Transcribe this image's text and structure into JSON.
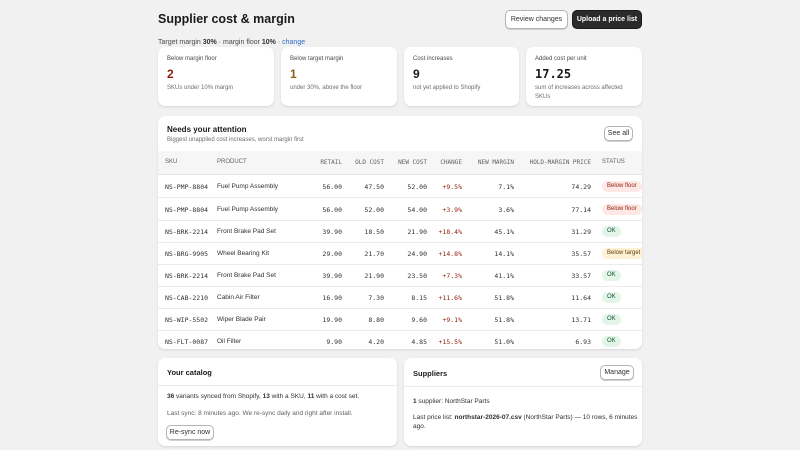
{
  "header": {
    "title": "Supplier cost & margin",
    "subtitle_prefix": "Target margin ",
    "target_margin": "30%",
    "subtitle_mid": " · margin floor ",
    "margin_floor": "10%",
    "subtitle_sep": " · ",
    "change_link": "change",
    "review_button": "Review changes",
    "upload_button": "Upload a price list"
  },
  "stats": [
    {
      "label": "Below margin floor",
      "value": "2",
      "note": "SKUs under 10% margin",
      "color": "#8e1f0b"
    },
    {
      "label": "Below target margin",
      "value": "1",
      "note": "under 30%, above the floor",
      "color": "#8a6116"
    },
    {
      "label": "Cost increases",
      "value": "9",
      "note": "not yet applied to Shopify",
      "color": "#1a1a1a"
    },
    {
      "label": "Added cost per unit",
      "value": "17.25",
      "note": "sum of increases across affected SKUs",
      "color": "#1a1a1a"
    }
  ],
  "attention": {
    "title": "Needs your attention",
    "subtitle": "Biggest unapplied cost increases, worst margin first",
    "see_all": "See all",
    "columns": {
      "sku": "SKU",
      "product": "PRODUCT",
      "retail": "RETAIL",
      "old_cost": "OLD COST",
      "new_cost": "NEW COST",
      "change": "CHANGE",
      "new_margin": "NEW MARGIN",
      "hold_price": "HOLD-MARGIN PRICE",
      "status": "STATUS"
    },
    "rows": [
      {
        "sku": "NS-PMP-8804",
        "product": "Fuel Pump Assembly",
        "retail": "56.00",
        "old_cost": "47.50",
        "new_cost": "52.00",
        "change": "+9.5%",
        "new_margin": "7.1%",
        "hold_price": "74.29",
        "status": "Below floor",
        "status_type": "floor"
      },
      {
        "sku": "NS-PMP-8804",
        "product": "Fuel Pump Assembly",
        "retail": "56.00",
        "old_cost": "52.00",
        "new_cost": "54.00",
        "change": "+3.9%",
        "new_margin": "3.6%",
        "hold_price": "77.14",
        "status": "Below floor",
        "status_type": "floor"
      },
      {
        "sku": "NS-BRK-2214",
        "product": "Front Brake Pad Set",
        "retail": "39.90",
        "old_cost": "18.50",
        "new_cost": "21.90",
        "change": "+18.4%",
        "new_margin": "45.1%",
        "hold_price": "31.29",
        "status": "OK",
        "status_type": "ok"
      },
      {
        "sku": "NS-BRG-9905",
        "product": "Wheel Bearing Kit",
        "retail": "29.00",
        "old_cost": "21.70",
        "new_cost": "24.90",
        "change": "+14.8%",
        "new_margin": "14.1%",
        "hold_price": "35.57",
        "status": "Below target",
        "status_type": "target"
      },
      {
        "sku": "NS-BRK-2214",
        "product": "Front Brake Pad Set",
        "retail": "39.90",
        "old_cost": "21.90",
        "new_cost": "23.50",
        "change": "+7.3%",
        "new_margin": "41.1%",
        "hold_price": "33.57",
        "status": "OK",
        "status_type": "ok"
      },
      {
        "sku": "NS-CAB-2210",
        "product": "Cabin Air Filter",
        "retail": "16.90",
        "old_cost": "7.30",
        "new_cost": "8.15",
        "change": "+11.6%",
        "new_margin": "51.8%",
        "hold_price": "11.64",
        "status": "OK",
        "status_type": "ok"
      },
      {
        "sku": "NS-WIP-5502",
        "product": "Wiper Blade Pair",
        "retail": "19.90",
        "old_cost": "8.80",
        "new_cost": "9.60",
        "change": "+9.1%",
        "new_margin": "51.8%",
        "hold_price": "13.71",
        "status": "OK",
        "status_type": "ok"
      },
      {
        "sku": "NS-FLT-0087",
        "product": "Oil Filter",
        "retail": "9.90",
        "old_cost": "4.20",
        "new_cost": "4.85",
        "change": "+15.5%",
        "new_margin": "51.0%",
        "hold_price": "6.93",
        "status": "OK",
        "status_type": "ok"
      }
    ]
  },
  "catalog": {
    "title": "Your catalog",
    "variants_count": "36",
    "variants_text": " variants synced from Shopify, ",
    "sku_count": "13",
    "sku_text": " with a SKU, ",
    "cost_count": "11",
    "cost_text": " with a cost set.",
    "last_sync": "Last sync: 8 minutes ago. We re-sync daily and right after install.",
    "resync_button": "Re-sync now"
  },
  "suppliers": {
    "title": "Suppliers",
    "manage_button": "Manage",
    "supplier_count": "1",
    "supplier_text": " supplier: NorthStar Parts",
    "last_list_prefix": "Last price list: ",
    "last_list_file": "northstar-2026-07.csv",
    "last_list_suffix": " (NorthStar Parts) — 10 rows, 6 minutes",
    "last_list_suffix2": "ago."
  }
}
